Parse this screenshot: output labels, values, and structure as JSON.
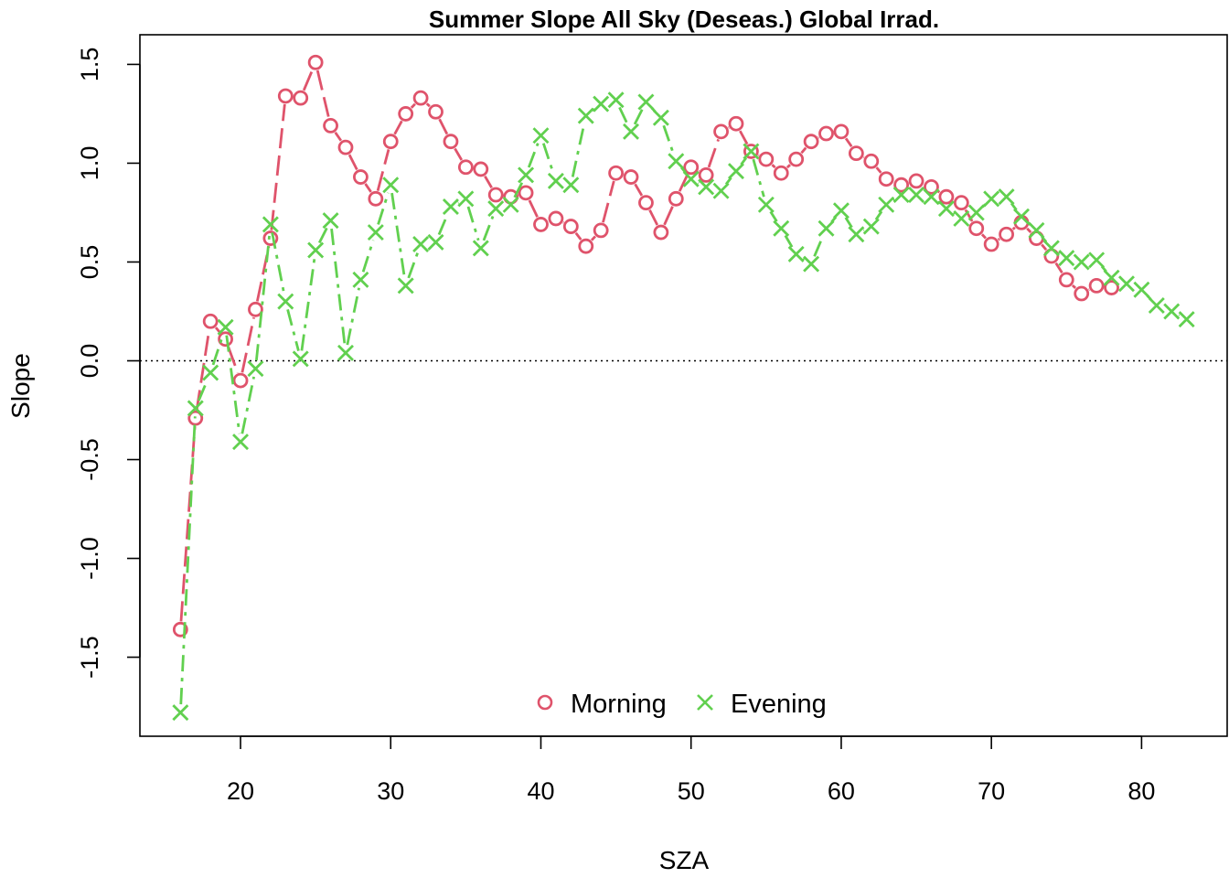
{
  "chart_data": {
    "type": "line",
    "title": "Summer Slope All Sky (Deseas.) Global Irrad.",
    "xlabel": "SZA",
    "ylabel": "Slope",
    "xlim": [
      13.3,
      85.7
    ],
    "ylim": [
      -1.9,
      1.65
    ],
    "xticks": [
      20,
      30,
      40,
      50,
      60,
      70,
      80
    ],
    "yticks": [
      -1.5,
      -1.0,
      -0.5,
      0.0,
      0.5,
      1.0,
      1.5
    ],
    "xtick_labels": [
      "20",
      "30",
      "40",
      "50",
      "60",
      "70",
      "80"
    ],
    "ytick_labels": [
      "-1.5",
      "-1.0",
      "-0.5",
      "0.0",
      "0.5",
      "1.0",
      "1.5"
    ],
    "reference_line": {
      "y": 0,
      "style": "dotted"
    },
    "legend_position": "bottom-center",
    "series": [
      {
        "name": "Morning",
        "marker": "circle",
        "line_style": "longdash",
        "color": "#DF536B",
        "x": [
          16,
          17,
          18,
          19,
          20,
          21,
          22,
          23,
          24,
          25,
          26,
          27,
          28,
          29,
          30,
          31,
          32,
          33,
          34,
          35,
          36,
          37,
          38,
          39,
          40,
          41,
          42,
          43,
          44,
          45,
          46,
          47,
          48,
          49,
          50,
          51,
          52,
          53,
          54,
          55,
          56,
          57,
          58,
          59,
          60,
          61,
          62,
          63,
          64,
          65,
          66,
          67,
          68,
          69,
          70,
          71,
          72,
          73,
          74,
          75,
          76,
          77,
          78
        ],
        "y": [
          -1.36,
          -0.29,
          0.2,
          0.11,
          -0.1,
          0.26,
          0.62,
          1.34,
          1.33,
          1.51,
          1.19,
          1.08,
          0.93,
          0.82,
          1.11,
          1.25,
          1.33,
          1.26,
          1.11,
          0.98,
          0.97,
          0.84,
          0.83,
          0.85,
          0.69,
          0.72,
          0.68,
          0.58,
          0.66,
          0.95,
          0.93,
          0.8,
          0.65,
          0.82,
          0.98,
          0.94,
          1.16,
          1.2,
          1.06,
          1.02,
          0.95,
          1.02,
          1.11,
          1.15,
          1.16,
          1.05,
          1.01,
          0.92,
          0.89,
          0.91,
          0.88,
          0.83,
          0.8,
          0.67,
          0.59,
          0.64,
          0.7,
          0.62,
          0.53,
          0.41,
          0.34,
          0.38,
          0.37
        ]
      },
      {
        "name": "Evening",
        "marker": "cross",
        "line_style": "dashdot",
        "color": "#61D04F",
        "x": [
          16,
          17,
          18,
          19,
          20,
          21,
          22,
          23,
          24,
          25,
          26,
          27,
          28,
          29,
          30,
          31,
          32,
          33,
          34,
          35,
          36,
          37,
          38,
          39,
          40,
          41,
          42,
          43,
          44,
          45,
          46,
          47,
          48,
          49,
          50,
          51,
          52,
          53,
          54,
          55,
          56,
          57,
          58,
          59,
          60,
          61,
          62,
          63,
          64,
          65,
          66,
          67,
          68,
          69,
          70,
          71,
          72,
          73,
          74,
          75,
          76,
          77,
          78,
          79,
          80,
          81,
          82,
          83
        ],
        "y": [
          -1.78,
          -0.24,
          -0.06,
          0.17,
          -0.41,
          -0.04,
          0.69,
          0.3,
          0.01,
          0.56,
          0.71,
          0.04,
          0.41,
          0.65,
          0.89,
          0.38,
          0.59,
          0.6,
          0.78,
          0.82,
          0.57,
          0.77,
          0.79,
          0.94,
          1.14,
          0.91,
          0.89,
          1.24,
          1.3,
          1.32,
          1.16,
          1.31,
          1.23,
          1.01,
          0.92,
          0.88,
          0.86,
          0.96,
          1.06,
          0.79,
          0.67,
          0.54,
          0.49,
          0.67,
          0.76,
          0.64,
          0.68,
          0.79,
          0.84,
          0.84,
          0.83,
          0.77,
          0.72,
          0.75,
          0.82,
          0.83,
          0.73,
          0.66,
          0.57,
          0.52,
          0.5,
          0.51,
          0.42,
          0.39,
          0.36,
          0.28,
          0.25,
          0.21
        ]
      }
    ]
  }
}
